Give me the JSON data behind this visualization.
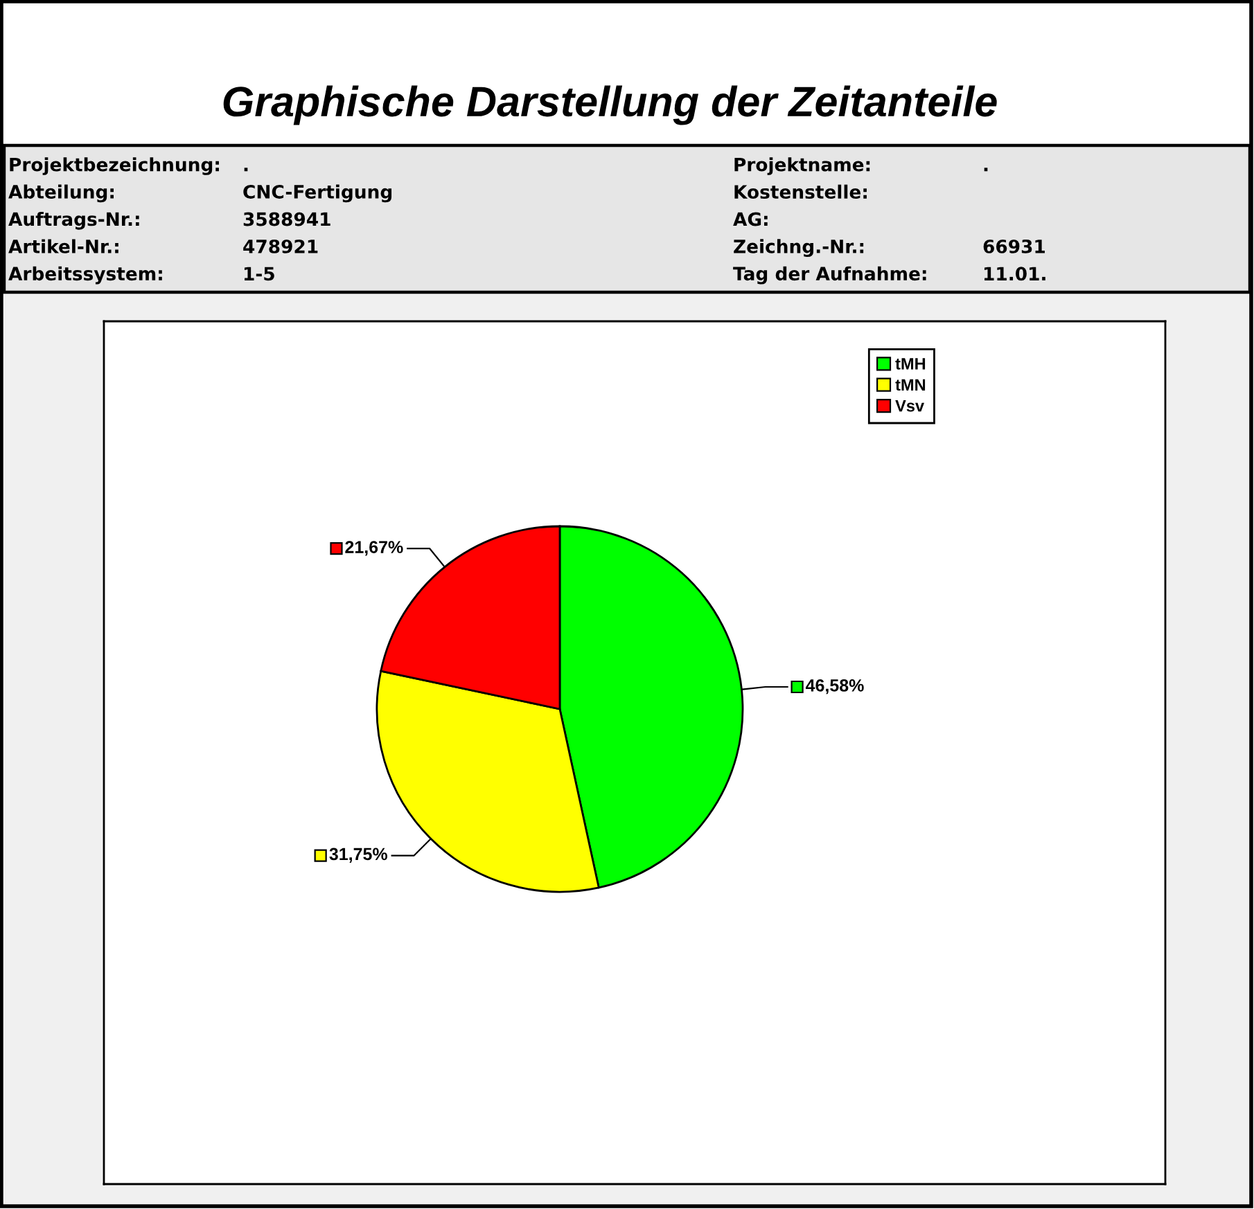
{
  "chart_data": {
    "type": "pie",
    "title": "Graphische Darstellung der Zeitanteile",
    "categories": [
      "tMH",
      "tMN",
      "Vsv"
    ],
    "values": [
      46.58,
      31.75,
      21.67
    ],
    "colors": [
      "#00ff00",
      "#ffff00",
      "#ff0000"
    ],
    "value_labels": [
      "46,58%",
      "31,75%",
      "21,67%"
    ],
    "legend": "top right",
    "annotations": [
      "Projektbezeichnung: .",
      "Abteilung: CNC-Fertigung",
      "Auftrags-Nr.: 3588941",
      "Artikel-Nr.: 478921",
      "Arbeitssystem: 1-5",
      "Projektname: .",
      "Kostenstelle:",
      "AG:",
      "Zeichng.-Nr.: 66931",
      "Tag der Aufnahme: 11.01."
    ]
  }
}
